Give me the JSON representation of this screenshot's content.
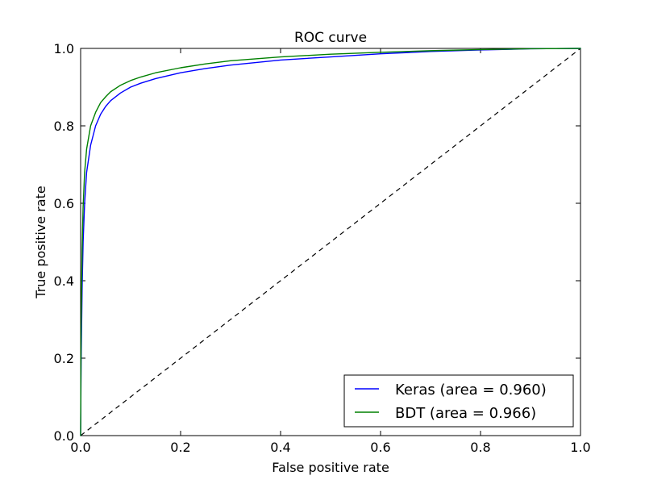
{
  "chart_data": {
    "type": "line",
    "title": "ROC curve",
    "xlabel": "False positive rate",
    "ylabel": "True positive rate",
    "xlim": [
      0.0,
      1.0
    ],
    "ylim": [
      0.0,
      1.0
    ],
    "xticks": [
      "0.0",
      "0.2",
      "0.4",
      "0.6",
      "0.8",
      "1.0"
    ],
    "yticks": [
      "0.0",
      "0.2",
      "0.4",
      "0.6",
      "0.8",
      "1.0"
    ],
    "grid": false,
    "legend_position": "lower-right",
    "series": [
      {
        "name": "Keras (area = 0.960)",
        "color": "#0000ff",
        "x": [
          0.0,
          0.001,
          0.003,
          0.005,
          0.008,
          0.012,
          0.02,
          0.03,
          0.04,
          0.05,
          0.06,
          0.08,
          0.1,
          0.12,
          0.15,
          0.2,
          0.25,
          0.3,
          0.4,
          0.5,
          0.6,
          0.7,
          0.8,
          0.9,
          1.0
        ],
        "y": [
          0.0,
          0.19,
          0.38,
          0.5,
          0.6,
          0.68,
          0.75,
          0.8,
          0.83,
          0.85,
          0.865,
          0.885,
          0.9,
          0.91,
          0.922,
          0.937,
          0.948,
          0.957,
          0.97,
          0.978,
          0.986,
          0.992,
          0.996,
          0.999,
          1.0
        ]
      },
      {
        "name": "BDT (area = 0.966)",
        "color": "#008000",
        "x": [
          0.0,
          0.001,
          0.003,
          0.005,
          0.008,
          0.012,
          0.02,
          0.03,
          0.04,
          0.05,
          0.06,
          0.08,
          0.1,
          0.12,
          0.15,
          0.2,
          0.25,
          0.3,
          0.4,
          0.5,
          0.6,
          0.7,
          0.8,
          0.9,
          1.0
        ],
        "y": [
          0.0,
          0.28,
          0.48,
          0.59,
          0.68,
          0.74,
          0.8,
          0.835,
          0.86,
          0.875,
          0.888,
          0.905,
          0.917,
          0.926,
          0.937,
          0.95,
          0.96,
          0.968,
          0.978,
          0.985,
          0.99,
          0.994,
          0.997,
          0.999,
          1.0
        ]
      }
    ],
    "reference_line": {
      "color": "#000000",
      "style": "dashed",
      "x": [
        0.0,
        1.0
      ],
      "y": [
        0.0,
        1.0
      ]
    }
  }
}
